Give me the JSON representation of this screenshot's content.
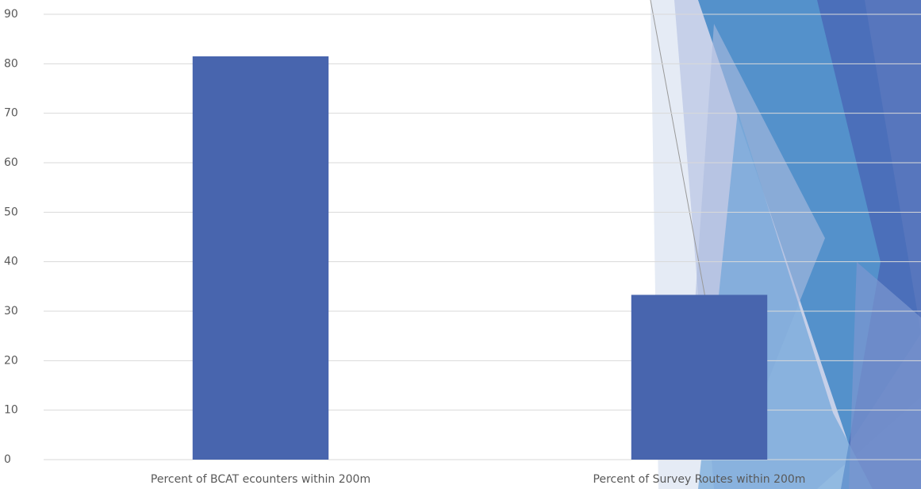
{
  "chart_data": {
    "type": "bar",
    "categories": [
      "Percent of BCAT ecounters within 200m",
      "Percent of Survey Routes within 200m"
    ],
    "values": [
      81.5,
      33.3
    ],
    "color": "#4865ae",
    "ylim": [
      0,
      90
    ],
    "yticks": [
      0,
      10,
      20,
      30,
      40,
      50,
      60,
      70,
      80,
      90
    ],
    "grid": true
  }
}
